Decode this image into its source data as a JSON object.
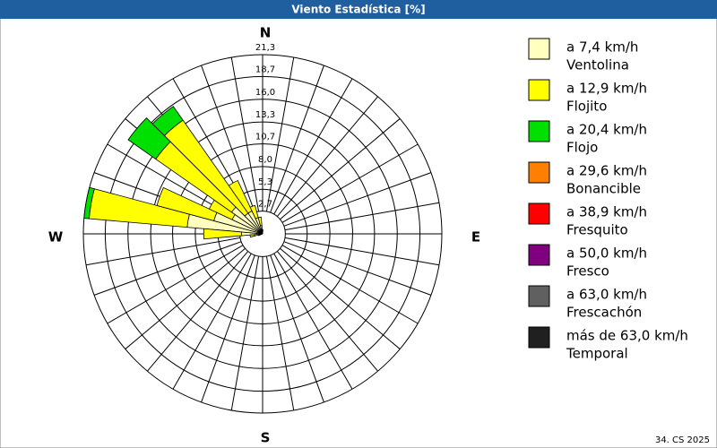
{
  "chart_data": {
    "type": "windrose",
    "title": "Viento Estadística [%]",
    "footer": "34. CS 2025",
    "compass": [
      "N",
      "E",
      "S",
      "W"
    ],
    "x": [
      0,
      10,
      20,
      30,
      40,
      50,
      60,
      70,
      80,
      90,
      100,
      110,
      120,
      130,
      140,
      150,
      160,
      170,
      180,
      190,
      200,
      210,
      220,
      230,
      240,
      250,
      260,
      270,
      280,
      290,
      300,
      310,
      320,
      330,
      340,
      350
    ],
    "ylim": [
      0,
      21.3
    ],
    "yticks": [
      {
        "value": 2.7,
        "label": "2,7"
      },
      {
        "value": 5.3,
        "label": "5,3"
      },
      {
        "value": 8.0,
        "label": "8,0"
      },
      {
        "value": 10.7,
        "label": "10,7"
      },
      {
        "value": 13.3,
        "label": "13,3"
      },
      {
        "value": 16.0,
        "label": "16,0"
      },
      {
        "value": 18.7,
        "label": "18,7"
      },
      {
        "value": 21.3,
        "label": "21,3"
      }
    ],
    "series": [
      {
        "name": "a 7,4 km/h",
        "description": "Ventolina",
        "color": "#ffffc0",
        "values": [
          0.5,
          0,
          0,
          0,
          0,
          0,
          0,
          0,
          0,
          0,
          0,
          0,
          0,
          0,
          0,
          0,
          0,
          0,
          0,
          0,
          0,
          0,
          0,
          0,
          0,
          0.5,
          1.0,
          2.5,
          9.0,
          6.0,
          4.0,
          4.5,
          3.0,
          3.0,
          2.0,
          1.0
        ]
      },
      {
        "name": "a 12,9 km/h",
        "description": "Flojito",
        "color": "#ffff00",
        "values": [
          0,
          0,
          0,
          0,
          0,
          0,
          0,
          0,
          0,
          0,
          0,
          0,
          0,
          0,
          0,
          0,
          0,
          0,
          0,
          0,
          0,
          0,
          0,
          0,
          0,
          0,
          0.5,
          4.5,
          11.7,
          7.0,
          3.0,
          11.0,
          13.5,
          4.0,
          1.5,
          1.0
        ]
      },
      {
        "name": "a 20,4 km/h",
        "description": "Flojo",
        "color": "#00e000",
        "values": [
          0,
          0,
          0,
          0,
          0,
          0,
          0,
          0,
          0,
          0,
          0,
          0,
          0,
          0,
          0,
          0,
          0,
          0,
          0,
          0,
          0,
          0,
          0,
          0,
          0,
          0,
          0,
          0,
          0.6,
          0,
          0,
          4.0,
          2.0,
          0,
          0,
          0
        ]
      },
      {
        "name": "a 29,6 km/h",
        "description": "Bonancible",
        "color": "#ff8000",
        "values": [
          0,
          0,
          0,
          0,
          0,
          0,
          0,
          0,
          0,
          0,
          0,
          0,
          0,
          0,
          0,
          0,
          0,
          0,
          0,
          0,
          0,
          0,
          0,
          0,
          0,
          0,
          0,
          0,
          0,
          0,
          0,
          0,
          0,
          0,
          0,
          0
        ]
      },
      {
        "name": "a 38,9 km/h",
        "description": "Fresquito",
        "color": "#ff0000",
        "values": [
          0,
          0,
          0,
          0,
          0,
          0,
          0,
          0,
          0,
          0,
          0,
          0,
          0,
          0,
          0,
          0,
          0,
          0,
          0,
          0,
          0,
          0,
          0,
          0,
          0,
          0,
          0,
          0,
          0,
          0,
          0,
          0,
          0,
          0,
          0,
          0
        ]
      },
      {
        "name": "a 50,0 km/h",
        "description": "Fresco",
        "color": "#800080",
        "values": [
          0,
          0,
          0,
          0,
          0,
          0,
          0,
          0,
          0,
          0,
          0,
          0,
          0,
          0,
          0,
          0,
          0,
          0,
          0,
          0,
          0,
          0,
          0,
          0,
          0,
          0,
          0,
          0,
          0,
          0,
          0,
          0,
          0,
          0,
          0,
          0
        ]
      },
      {
        "name": "a 63,0 km/h",
        "description": "Frescachón",
        "color": "#606060",
        "values": [
          0,
          0,
          0,
          0,
          0,
          0,
          0,
          0,
          0,
          0,
          0,
          0,
          0,
          0,
          0,
          0,
          0,
          0,
          0,
          0,
          0,
          0,
          0,
          0,
          0,
          0,
          0,
          0,
          0,
          0,
          0,
          0,
          0,
          0,
          0,
          0
        ]
      },
      {
        "name": "más de 63,0 km/h",
        "description": "Temporal",
        "color": "#202020",
        "values": [
          0,
          0,
          0,
          0,
          0,
          0,
          0,
          0,
          0,
          0,
          0,
          0,
          0,
          0,
          0,
          0,
          0,
          0,
          0,
          0,
          0,
          0,
          0,
          0,
          0,
          0,
          0,
          0,
          0,
          0,
          0,
          0,
          0,
          0,
          0,
          0
        ]
      }
    ]
  }
}
